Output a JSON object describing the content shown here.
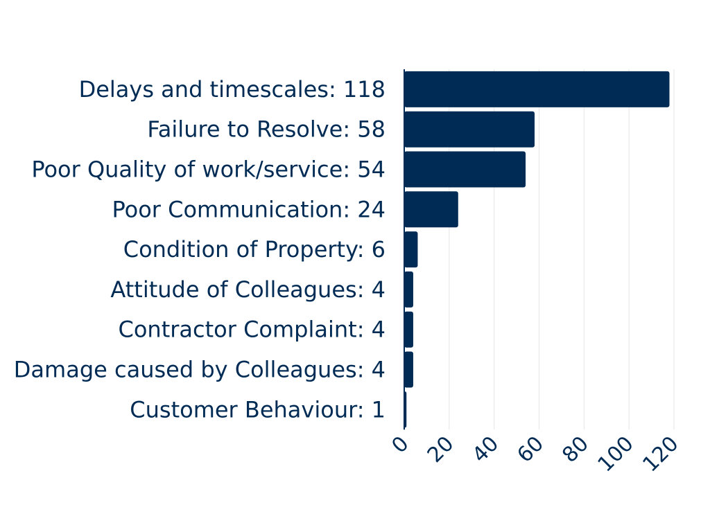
{
  "chart_data": {
    "type": "bar",
    "orientation": "horizontal",
    "categories": [
      "Delays and timescales",
      "Failure to Resolve",
      "Poor Quality of work/service",
      "Poor Communication",
      "Condition of Property",
      "Attitude of Colleagues",
      "Contractor Complaint",
      "Damage caused by Colleagues",
      "Customer Behaviour"
    ],
    "values": [
      118,
      58,
      54,
      24,
      6,
      4,
      4,
      4,
      1
    ],
    "category_labels": [
      "Delays and timescales: 118",
      "Failure to Resolve: 58",
      "Poor Quality of work/service: 54",
      "Poor Communication: 24",
      "Condition of Property: 6",
      "Attitude of Colleagues: 4",
      "Contractor Complaint: 4",
      "Damage caused by Colleagues: 4",
      "Customer Behaviour: 1"
    ],
    "x_ticks": [
      "0",
      "20",
      "40",
      "60",
      "80",
      "100",
      "120"
    ],
    "xlim": [
      0,
      120
    ],
    "grid": true,
    "title": "",
    "xlabel": "",
    "ylabel": "",
    "bar_color": "#002b55"
  }
}
